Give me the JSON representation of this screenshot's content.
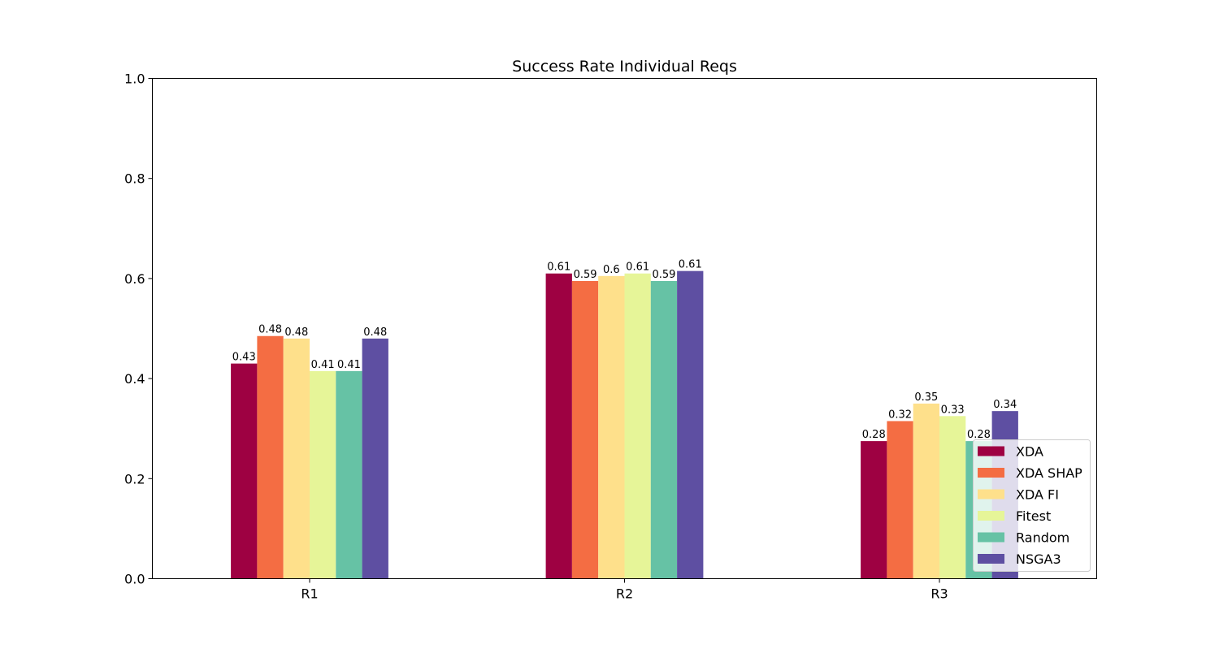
{
  "chart_data": {
    "type": "bar",
    "title": "Success Rate Individual Reqs",
    "xlabel": "",
    "ylabel": "",
    "ylim": [
      0,
      1.0
    ],
    "yticks": [
      "0.0",
      "0.2",
      "0.4",
      "0.6",
      "0.8",
      "1.0"
    ],
    "categories": [
      "R1",
      "R2",
      "R3"
    ],
    "grid": false,
    "legend_position": "lower-right",
    "series": [
      {
        "name": "XDA",
        "color": "#9e0142",
        "values": [
          0.43,
          0.61,
          0.275
        ],
        "labels": [
          "0.43",
          "0.61",
          "0.28"
        ]
      },
      {
        "name": "XDA SHAP",
        "color": "#f46d43",
        "values": [
          0.485,
          0.595,
          0.315
        ],
        "labels": [
          "0.48",
          "0.59",
          "0.32"
        ]
      },
      {
        "name": "XDA FI",
        "color": "#fee08b",
        "values": [
          0.48,
          0.605,
          0.35
        ],
        "labels": [
          "0.48",
          "0.6",
          "0.35"
        ]
      },
      {
        "name": "Fitest",
        "color": "#e6f598",
        "values": [
          0.415,
          0.61,
          0.325
        ],
        "labels": [
          "0.41",
          "0.61",
          "0.33"
        ]
      },
      {
        "name": "Random",
        "color": "#66c2a5",
        "values": [
          0.415,
          0.595,
          0.275
        ],
        "labels": [
          "0.41",
          "0.59",
          "0.28"
        ]
      },
      {
        "name": "NSGA3",
        "color": "#5e4fa2",
        "values": [
          0.48,
          0.615,
          0.335
        ],
        "labels": [
          "0.48",
          "0.61",
          "0.34"
        ]
      }
    ]
  }
}
